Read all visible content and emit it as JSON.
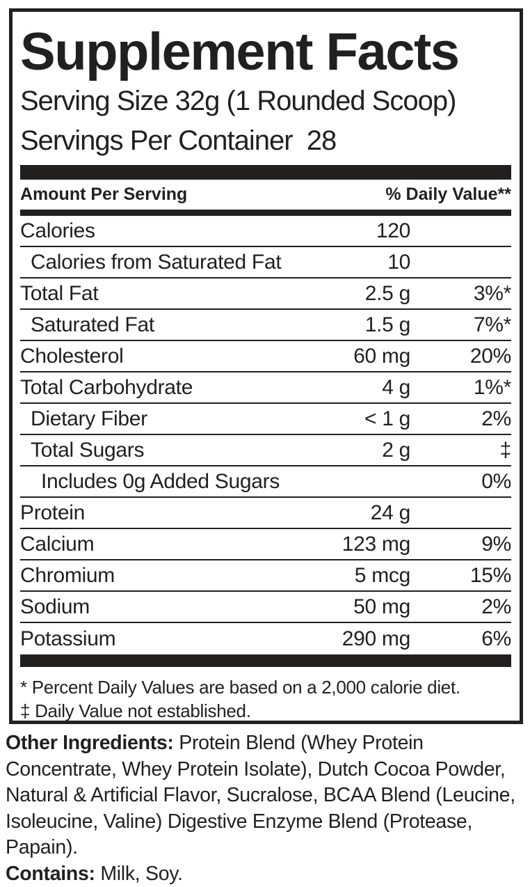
{
  "colors": {
    "ink": "#221f1f",
    "background": "#ffffff"
  },
  "panel": {
    "title": "Supplement Facts",
    "serving_size": "Serving Size 32g (1 Rounded Scoop)",
    "servings_per_container": "Servings Per Container  28",
    "headers": {
      "amount": "Amount Per Serving",
      "daily_value": "% Daily Value**"
    },
    "rows": [
      {
        "name": "Calories",
        "indent": 0,
        "amount": "120",
        "dv": ""
      },
      {
        "name": "Calories from Saturated Fat",
        "indent": 1,
        "amount": "10",
        "dv": ""
      },
      {
        "name": "Total Fat",
        "indent": 0,
        "amount": "2.5 g",
        "dv": "3%*"
      },
      {
        "name": "Saturated Fat",
        "indent": 1,
        "amount": "1.5 g",
        "dv": "7%*"
      },
      {
        "name": "Cholesterol",
        "indent": 0,
        "amount": "60 mg",
        "dv": "20%"
      },
      {
        "name": "Total Carbohydrate",
        "indent": 0,
        "amount": "4 g",
        "dv": "1%*"
      },
      {
        "name": "Dietary Fiber",
        "indent": 1,
        "amount": "< 1 g",
        "dv": "2%"
      },
      {
        "name": "Total Sugars",
        "indent": 1,
        "amount": "2 g",
        "dv": "‡"
      },
      {
        "name": "Includes 0g Added Sugars",
        "indent": 2,
        "amount": "",
        "dv": "0%"
      },
      {
        "name": "Protein",
        "indent": 0,
        "amount": "24 g",
        "dv": ""
      },
      {
        "name": "Calcium",
        "indent": 0,
        "amount": "123 mg",
        "dv": "9%"
      },
      {
        "name": "Chromium",
        "indent": 0,
        "amount": "5 mcg",
        "dv": "15%"
      },
      {
        "name": "Sodium",
        "indent": 0,
        "amount": "50 mg",
        "dv": "2%"
      },
      {
        "name": "Potassium",
        "indent": 0,
        "amount": "290 mg",
        "dv": "6%"
      }
    ],
    "footnotes": [
      "* Percent Daily Values are based on a 2,000 calorie diet.",
      "‡ Daily Value not established."
    ]
  },
  "ingredients": {
    "heading": "Other Ingredients:",
    "text": " Protein Blend (Whey Protein Concentrate, Whey Protein Isolate), Dutch Cocoa Powder, Natural & Artificial Flavor, Sucralose, BCAA Blend (Leucine, Isoleucine, Valine) Digestive Enzyme Blend (Protease, Papain).",
    "contains_heading": "Contains:",
    "contains_text": " Milk, Soy."
  }
}
